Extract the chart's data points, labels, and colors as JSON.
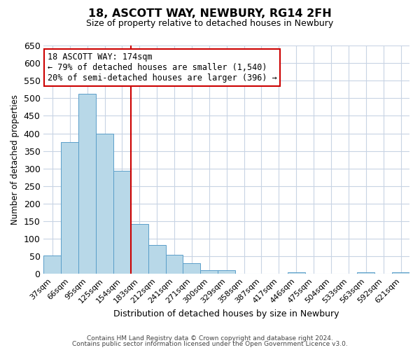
{
  "title": "18, ASCOTT WAY, NEWBURY, RG14 2FH",
  "subtitle": "Size of property relative to detached houses in Newbury",
  "xlabel": "Distribution of detached houses by size in Newbury",
  "ylabel": "Number of detached properties",
  "bar_labels": [
    "37sqm",
    "66sqm",
    "95sqm",
    "125sqm",
    "154sqm",
    "183sqm",
    "212sqm",
    "241sqm",
    "271sqm",
    "300sqm",
    "329sqm",
    "358sqm",
    "387sqm",
    "417sqm",
    "446sqm",
    "475sqm",
    "504sqm",
    "533sqm",
    "563sqm",
    "592sqm",
    "621sqm"
  ],
  "bar_values": [
    52,
    375,
    512,
    400,
    293,
    143,
    82,
    55,
    30,
    10,
    10,
    0,
    0,
    0,
    5,
    0,
    0,
    0,
    5,
    0,
    5
  ],
  "bar_color": "#b8d8e8",
  "bar_edge_color": "#5a9ec9",
  "vline_pos": 4.5,
  "vline_color": "#cc0000",
  "annotation_title": "18 ASCOTT WAY: 174sqm",
  "annotation_line1": "← 79% of detached houses are smaller (1,540)",
  "annotation_line2": "20% of semi-detached houses are larger (396) →",
  "annotation_box_color": "#ffffff",
  "annotation_box_edge": "#cc0000",
  "ylim": [
    0,
    650
  ],
  "yticks": [
    0,
    50,
    100,
    150,
    200,
    250,
    300,
    350,
    400,
    450,
    500,
    550,
    600,
    650
  ],
  "footer1": "Contains HM Land Registry data © Crown copyright and database right 2024.",
  "footer2": "Contains public sector information licensed under the Open Government Licence v3.0.",
  "background_color": "#ffffff",
  "grid_color": "#c8d4e4"
}
